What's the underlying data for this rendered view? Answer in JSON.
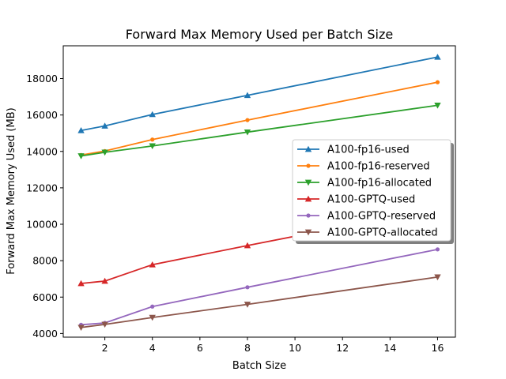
{
  "chart_data": {
    "type": "line",
    "title": "Forward Max Memory Used per Batch Size",
    "xlabel": "Batch Size",
    "ylabel": "Forward Max Memory Used (MB)",
    "xlim": [
      0.25,
      16.75
    ],
    "ylim": [
      3800,
      19800
    ],
    "xticks": [
      2,
      4,
      6,
      8,
      10,
      12,
      14,
      16
    ],
    "yticks": [
      4000,
      6000,
      8000,
      10000,
      12000,
      14000,
      16000,
      18000
    ],
    "grid": false,
    "legend_position": "center-right",
    "x": [
      1,
      2,
      4,
      8,
      16
    ],
    "series": [
      {
        "name": "A100-fp16-used",
        "color": "#1f77b4",
        "marker": "triangle-up",
        "values": [
          15150,
          15400,
          16030,
          17080,
          19180
        ]
      },
      {
        "name": "A100-fp16-reserved",
        "color": "#ff7f0e",
        "marker": "circle",
        "values": [
          13800,
          14020,
          14650,
          15720,
          17800
        ]
      },
      {
        "name": "A100-fp16-allocated",
        "color": "#2ca02c",
        "marker": "triangle-down",
        "values": [
          13750,
          13950,
          14300,
          15060,
          16530
        ]
      },
      {
        "name": "A100-GPTQ-used",
        "color": "#d62728",
        "marker": "triangle-up",
        "values": [
          6750,
          6880,
          7780,
          8830,
          10880
        ]
      },
      {
        "name": "A100-GPTQ-reserved",
        "color": "#9467bd",
        "marker": "circle",
        "values": [
          4480,
          4580,
          5480,
          6540,
          8620
        ]
      },
      {
        "name": "A100-GPTQ-allocated",
        "color": "#8c564b",
        "marker": "triangle-down",
        "values": [
          4330,
          4500,
          4880,
          5600,
          7100
        ]
      }
    ]
  }
}
